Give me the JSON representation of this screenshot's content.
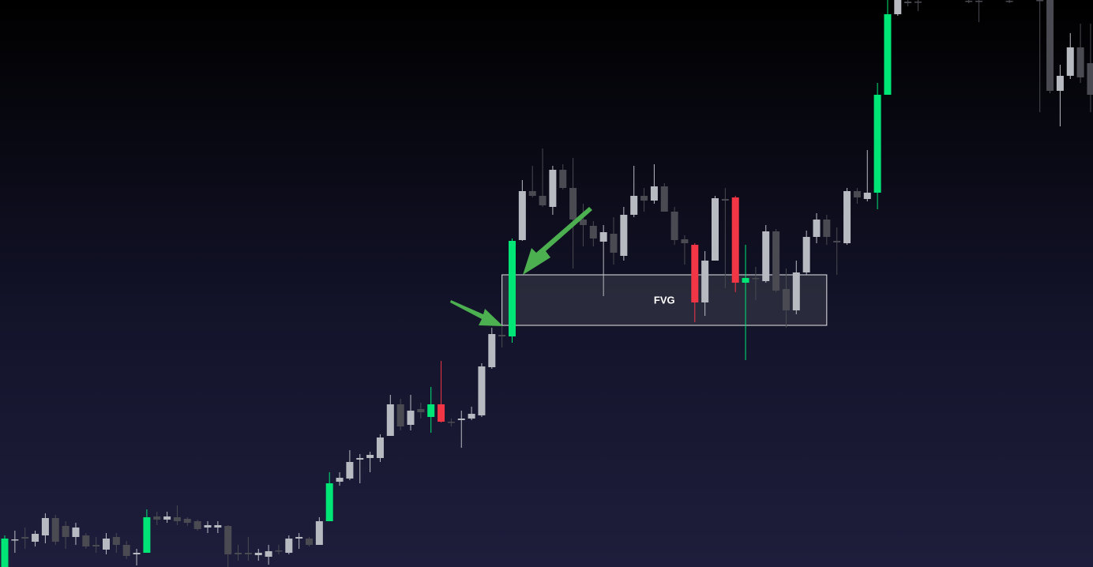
{
  "chart_data": {
    "type": "candlestick",
    "ylim": [
      0,
      718
    ],
    "zone": {
      "label": "FVG",
      "from": 49,
      "to": 81,
      "low": 306,
      "high": 370
    },
    "candles": [
      {
        "open": 0,
        "high": 40,
        "low": 0,
        "close": 36,
        "color": "#00e676"
      },
      {
        "open": 34,
        "high": 46,
        "low": 18,
        "close": 35,
        "color": "#b8bac2"
      },
      {
        "open": 38,
        "high": 50,
        "low": 23,
        "close": 36,
        "color": "#4a4a52"
      },
      {
        "open": 32,
        "high": 46,
        "low": 26,
        "close": 42,
        "color": "#b8bac2"
      },
      {
        "open": 40,
        "high": 68,
        "low": 30,
        "close": 62,
        "color": "#b8bac2"
      },
      {
        "open": 62,
        "high": 66,
        "low": 28,
        "close": 32,
        "color": "#4a4a52"
      },
      {
        "open": 52,
        "high": 58,
        "low": 23,
        "close": 38,
        "color": "#4a4a52"
      },
      {
        "open": 38,
        "high": 56,
        "low": 28,
        "close": 50,
        "color": "#b8bac2"
      },
      {
        "open": 40,
        "high": 43,
        "low": 23,
        "close": 26,
        "color": "#4a4a52"
      },
      {
        "open": 28,
        "high": 38,
        "low": 18,
        "close": 26,
        "color": "#4a4a52"
      },
      {
        "open": 22,
        "high": 43,
        "low": 16,
        "close": 36,
        "color": "#b8bac2"
      },
      {
        "open": 38,
        "high": 43,
        "low": 18,
        "close": 28,
        "color": "#4a4a52"
      },
      {
        "open": 28,
        "high": 33,
        "low": 10,
        "close": 14,
        "color": "#4a4a52"
      },
      {
        "open": 16,
        "high": 23,
        "low": 2,
        "close": 18,
        "color": "#b8bac2"
      },
      {
        "open": 18,
        "high": 73,
        "low": 18,
        "close": 63,
        "color": "#00e676"
      },
      {
        "open": 64,
        "high": 70,
        "low": 53,
        "close": 60,
        "color": "#4a4a52"
      },
      {
        "open": 60,
        "high": 70,
        "low": 56,
        "close": 64,
        "color": "#b8bac2"
      },
      {
        "open": 63,
        "high": 78,
        "low": 53,
        "close": 58,
        "color": "#4a4a52"
      },
      {
        "open": 61,
        "high": 63,
        "low": 52,
        "close": 56,
        "color": "#4a4a52"
      },
      {
        "open": 58,
        "high": 60,
        "low": 46,
        "close": 48,
        "color": "#4a4a52"
      },
      {
        "open": 50,
        "high": 58,
        "low": 43,
        "close": 53,
        "color": "#b8bac2"
      },
      {
        "open": 50,
        "high": 58,
        "low": 43,
        "close": 53,
        "color": "#b8bac2"
      },
      {
        "open": 52,
        "high": 53,
        "low": 0,
        "close": 16,
        "color": "#4a4a52"
      },
      {
        "open": 18,
        "high": 28,
        "low": 8,
        "close": 16,
        "color": "#4a4a52"
      },
      {
        "open": 18,
        "high": 38,
        "low": 8,
        "close": 16,
        "color": "#4a4a52"
      },
      {
        "open": 15,
        "high": 23,
        "low": 8,
        "close": 18,
        "color": "#b8bac2"
      },
      {
        "open": 13,
        "high": 28,
        "low": 3,
        "close": 20,
        "color": "#b8bac2"
      },
      {
        "open": 21,
        "high": 28,
        "low": 16,
        "close": 20,
        "color": "#4a4a52"
      },
      {
        "open": 18,
        "high": 40,
        "low": 16,
        "close": 36,
        "color": "#b8bac2"
      },
      {
        "open": 36,
        "high": 43,
        "low": 23,
        "close": 38,
        "color": "#b8bac2"
      },
      {
        "open": 36,
        "high": 38,
        "low": 26,
        "close": 28,
        "color": "#4a4a52"
      },
      {
        "open": 28,
        "high": 63,
        "low": 28,
        "close": 58,
        "color": "#b8bac2"
      },
      {
        "open": 58,
        "high": 120,
        "low": 58,
        "close": 106,
        "color": "#00e676"
      },
      {
        "open": 108,
        "high": 120,
        "low": 103,
        "close": 113,
        "color": "#b8bac2"
      },
      {
        "open": 112,
        "high": 148,
        "low": 110,
        "close": 133,
        "color": "#b8bac2"
      },
      {
        "open": 136,
        "high": 143,
        "low": 106,
        "close": 138,
        "color": "#b8bac2"
      },
      {
        "open": 138,
        "high": 146,
        "low": 120,
        "close": 142,
        "color": "#b8bac2"
      },
      {
        "open": 138,
        "high": 168,
        "low": 133,
        "close": 164,
        "color": "#b8bac2"
      },
      {
        "open": 166,
        "high": 218,
        "low": 166,
        "close": 206,
        "color": "#b8bac2"
      },
      {
        "open": 206,
        "high": 213,
        "low": 173,
        "close": 178,
        "color": "#4a4a52"
      },
      {
        "open": 180,
        "high": 218,
        "low": 173,
        "close": 198,
        "color": "#b8bac2"
      },
      {
        "open": 200,
        "high": 208,
        "low": 188,
        "close": 196,
        "color": "#4a4a52"
      },
      {
        "open": 190,
        "high": 228,
        "low": 170,
        "close": 206,
        "color": "#00e676"
      },
      {
        "open": 206,
        "high": 261,
        "low": 183,
        "close": 184,
        "color": "#f23645"
      },
      {
        "open": 184,
        "high": 188,
        "low": 178,
        "close": 183,
        "color": "#4a4a52"
      },
      {
        "open": 186,
        "high": 198,
        "low": 151,
        "close": 188,
        "color": "#b8bac2"
      },
      {
        "open": 188,
        "high": 203,
        "low": 186,
        "close": 194,
        "color": "#b8bac2"
      },
      {
        "open": 192,
        "high": 258,
        "low": 190,
        "close": 254,
        "color": "#b8bac2"
      },
      {
        "open": 253,
        "high": 303,
        "low": 251,
        "close": 295,
        "color": "#b8bac2"
      },
      {
        "open": 294,
        "high": 306,
        "low": 278,
        "close": 292,
        "color": "#4a4a52"
      },
      {
        "open": 292,
        "high": 416,
        "low": 284,
        "close": 413,
        "color": "#00e676"
      },
      {
        "open": 414,
        "high": 490,
        "low": 413,
        "close": 476,
        "color": "#b8bac2"
      },
      {
        "open": 476,
        "high": 508,
        "low": 468,
        "close": 470,
        "color": "#4a4a52"
      },
      {
        "open": 470,
        "high": 530,
        "low": 456,
        "close": 458,
        "color": "#4a4a52"
      },
      {
        "open": 456,
        "high": 508,
        "low": 446,
        "close": 503,
        "color": "#b8bac2"
      },
      {
        "open": 503,
        "high": 510,
        "low": 478,
        "close": 480,
        "color": "#4a4a52"
      },
      {
        "open": 480,
        "high": 518,
        "low": 378,
        "close": 440,
        "color": "#4a4a52"
      },
      {
        "open": 440,
        "high": 460,
        "low": 406,
        "close": 433,
        "color": "#4a4a52"
      },
      {
        "open": 432,
        "high": 438,
        "low": 406,
        "close": 416,
        "color": "#4a4a52"
      },
      {
        "open": 412,
        "high": 433,
        "low": 343,
        "close": 424,
        "color": "#b8bac2"
      },
      {
        "open": 422,
        "high": 443,
        "low": 383,
        "close": 398,
        "color": "#4a4a52"
      },
      {
        "open": 394,
        "high": 456,
        "low": 388,
        "close": 446,
        "color": "#b8bac2"
      },
      {
        "open": 446,
        "high": 508,
        "low": 443,
        "close": 470,
        "color": "#b8bac2"
      },
      {
        "open": 470,
        "high": 480,
        "low": 450,
        "close": 464,
        "color": "#4a4a52"
      },
      {
        "open": 464,
        "high": 510,
        "low": 460,
        "close": 482,
        "color": "#b8bac2"
      },
      {
        "open": 482,
        "high": 486,
        "low": 450,
        "close": 450,
        "color": "#4a4a52"
      },
      {
        "open": 450,
        "high": 456,
        "low": 408,
        "close": 414,
        "color": "#4a4a52"
      },
      {
        "open": 415,
        "high": 420,
        "low": 383,
        "close": 410,
        "color": "#4a4a52"
      },
      {
        "open": 408,
        "high": 410,
        "low": 310,
        "close": 335,
        "color": "#f23645"
      },
      {
        "open": 335,
        "high": 400,
        "low": 318,
        "close": 388,
        "color": "#b8bac2"
      },
      {
        "open": 388,
        "high": 470,
        "low": 388,
        "close": 467,
        "color": "#b8bac2"
      },
      {
        "open": 466,
        "high": 480,
        "low": 353,
        "close": 464,
        "color": "#4a4a52"
      },
      {
        "open": 468,
        "high": 470,
        "low": 348,
        "close": 360,
        "color": "#f23645"
      },
      {
        "open": 360,
        "high": 408,
        "low": 262,
        "close": 366,
        "color": "#00e676"
      },
      {
        "open": 366,
        "high": 380,
        "low": 338,
        "close": 365,
        "color": "#4a4a52"
      },
      {
        "open": 362,
        "high": 433,
        "low": 360,
        "close": 425,
        "color": "#b8bac2"
      },
      {
        "open": 425,
        "high": 428,
        "low": 348,
        "close": 350,
        "color": "#4a4a52"
      },
      {
        "open": 352,
        "high": 378,
        "low": 303,
        "close": 325,
        "color": "#4a4a52"
      },
      {
        "open": 325,
        "high": 388,
        "low": 320,
        "close": 373,
        "color": "#b8bac2"
      },
      {
        "open": 373,
        "high": 426,
        "low": 370,
        "close": 418,
        "color": "#b8bac2"
      },
      {
        "open": 418,
        "high": 448,
        "low": 410,
        "close": 440,
        "color": "#b8bac2"
      },
      {
        "open": 440,
        "high": 446,
        "low": 408,
        "close": 418,
        "color": "#4a4a52"
      },
      {
        "open": 413,
        "high": 430,
        "low": 370,
        "close": 411,
        "color": "#4a4a52"
      },
      {
        "open": 410,
        "high": 480,
        "low": 408,
        "close": 476,
        "color": "#b8bac2"
      },
      {
        "open": 476,
        "high": 480,
        "low": 460,
        "close": 468,
        "color": "#4a4a52"
      },
      {
        "open": 466,
        "high": 528,
        "low": 463,
        "close": 474,
        "color": "#b8bac2"
      },
      {
        "open": 474,
        "high": 613,
        "low": 453,
        "close": 598,
        "color": "#00e676"
      },
      {
        "open": 598,
        "high": 718,
        "low": 598,
        "close": 700,
        "color": "#00e676"
      },
      {
        "open": 700,
        "high": 718,
        "low": 698,
        "close": 718,
        "color": "#b8bac2"
      },
      {
        "open": 716,
        "high": 718,
        "low": 710,
        "close": 714,
        "color": "#4a4a52"
      },
      {
        "open": 716,
        "high": 718,
        "low": 704,
        "close": 715,
        "color": "#4a4a52"
      },
      null,
      null,
      null,
      null,
      {
        "open": 717,
        "high": 718,
        "low": 714,
        "close": 716,
        "color": "#4a4a52"
      },
      {
        "open": 717,
        "high": 718,
        "low": 690,
        "close": 716,
        "color": "#4a4a52"
      },
      null,
      null,
      {
        "open": 717,
        "high": 718,
        "low": 714,
        "close": 716,
        "color": "#4a4a52"
      },
      null,
      null,
      {
        "open": 718,
        "high": 718,
        "low": 576,
        "close": 717,
        "color": "#4a4a52"
      },
      {
        "open": 718,
        "high": 718,
        "low": 600,
        "close": 603,
        "color": "#4a4a52"
      },
      {
        "open": 603,
        "high": 636,
        "low": 558,
        "close": 622,
        "color": "#b8bac2"
      },
      {
        "open": 622,
        "high": 676,
        "low": 618,
        "close": 658,
        "color": "#b8bac2"
      },
      {
        "open": 658,
        "high": 688,
        "low": 613,
        "close": 620,
        "color": "#4a4a52"
      },
      {
        "open": 638,
        "high": 688,
        "low": 576,
        "close": 598,
        "color": "#4a4a52"
      }
    ]
  }
}
